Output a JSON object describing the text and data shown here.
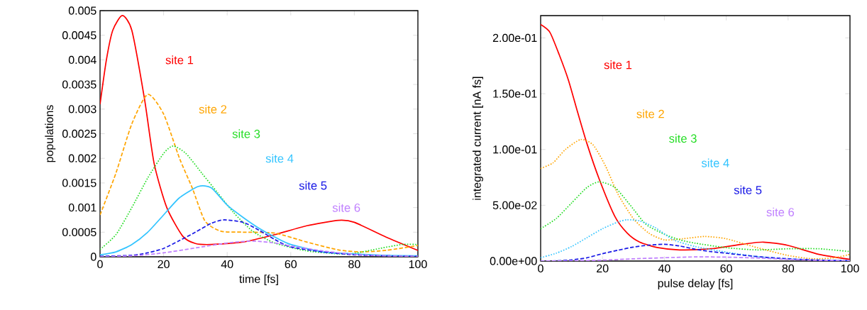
{
  "chart_data": [
    {
      "type": "line",
      "xlabel": "time [fs]",
      "ylabel": "populations",
      "xlim": [
        0,
        100
      ],
      "ylim": [
        0,
        0.005
      ],
      "xticks": [
        0,
        20,
        40,
        60,
        80,
        100
      ],
      "yticks": [
        0,
        0.0005,
        0.001,
        0.0015,
        0.002,
        0.0025,
        0.003,
        0.0035,
        0.004,
        0.0045,
        0.005
      ],
      "series": [
        {
          "name": "site 1",
          "color": "#ff0000",
          "line_style": "solid",
          "x": [
            0,
            2,
            4,
            7,
            10,
            14,
            17,
            21,
            26,
            30,
            35,
            45,
            55,
            65,
            75,
            80,
            90,
            100
          ],
          "values": [
            0.0031,
            0.004,
            0.0046,
            0.0049,
            0.0046,
            0.0032,
            0.0019,
            0.001,
            0.00042,
            0.00027,
            0.00025,
            0.0003,
            0.00045,
            0.00063,
            0.00074,
            0.0007,
            0.0004,
            0.00013
          ]
        },
        {
          "name": "site 2",
          "color": "#ffa500",
          "line_style": "dashed",
          "x": [
            0,
            5,
            10,
            15,
            20,
            25,
            29,
            33,
            38,
            45,
            55,
            65,
            75,
            82,
            90,
            100
          ],
          "values": [
            0.00085,
            0.0017,
            0.0027,
            0.0033,
            0.0029,
            0.002,
            0.0014,
            0.00073,
            0.00052,
            0.0005,
            0.00048,
            0.0003,
            0.00014,
            0.0001,
            0.00013,
            0.00023
          ]
        },
        {
          "name": "site 3",
          "color": "#22dd22",
          "line_style": "dotted",
          "x": [
            0,
            5,
            10,
            15,
            20,
            23,
            27,
            32,
            37,
            42,
            48,
            55,
            65,
            75,
            80,
            88,
            95,
            100
          ],
          "values": [
            0.00015,
            0.00045,
            0.001,
            0.0016,
            0.0021,
            0.00225,
            0.0021,
            0.0017,
            0.0013,
            0.0009,
            0.00052,
            0.00028,
            0.00012,
            6e-05,
            7e-05,
            0.00017,
            0.00025,
            0.00025
          ]
        },
        {
          "name": "site 4",
          "color": "#33c4ff",
          "line_style": "solid",
          "x": [
            0,
            5,
            10,
            15,
            20,
            25,
            31,
            35,
            40,
            45,
            50,
            55,
            60,
            70,
            80,
            90,
            100
          ],
          "values": [
            4e-05,
            0.0001,
            0.00025,
            0.0005,
            0.00085,
            0.0012,
            0.00143,
            0.0014,
            0.00105,
            0.0008,
            0.00058,
            0.0004,
            0.00025,
            0.0001,
            6e-05,
            3e-05,
            2e-05
          ]
        },
        {
          "name": "site 5",
          "color": "#1a1ae6",
          "line_style": "dashed",
          "x": [
            0,
            10,
            15,
            20,
            25,
            30,
            35,
            39,
            45,
            50,
            55,
            60,
            70,
            80,
            90,
            100
          ],
          "values": [
            1e-05,
            3e-05,
            8e-05,
            0.00017,
            0.00033,
            0.0005,
            0.00068,
            0.00075,
            0.0007,
            0.00054,
            0.00035,
            0.0002,
            0.0001,
            4e-05,
            2e-05,
            1e-05
          ]
        },
        {
          "name": "site 6",
          "color": "#c080ff",
          "line_style": "dashed",
          "x": [
            0,
            10,
            20,
            30,
            40,
            48,
            55,
            60,
            70,
            80,
            90,
            100
          ],
          "values": [
            0,
            2e-05,
            8e-05,
            0.00018,
            0.00028,
            0.00032,
            0.00028,
            0.00022,
            0.00012,
            5e-05,
            2e-05,
            1e-05
          ]
        }
      ]
    },
    {
      "type": "line",
      "xlabel": "pulse delay [fs]",
      "ylabel": "integrated current [nA fs]",
      "xlim": [
        0,
        100
      ],
      "ylim": [
        0,
        0.22
      ],
      "xticks": [
        0,
        20,
        40,
        60,
        80,
        100
      ],
      "yticks": [
        {
          "value": 0,
          "label": "0.00e+00"
        },
        {
          "value": 0.05,
          "label": "5.00e-02"
        },
        {
          "value": 0.1,
          "label": "1.00e-01"
        },
        {
          "value": 0.15,
          "label": "1.50e-01"
        },
        {
          "value": 0.2,
          "label": "2.00e-01"
        }
      ],
      "series": [
        {
          "name": "site 1",
          "color": "#ff0000",
          "line_style": "solid",
          "x": [
            0,
            3,
            6,
            9,
            12,
            15,
            19,
            24,
            28,
            32,
            38,
            45,
            55,
            65,
            72,
            80,
            90,
            100
          ],
          "values": [
            0.212,
            0.205,
            0.185,
            0.162,
            0.133,
            0.105,
            0.073,
            0.04,
            0.025,
            0.017,
            0.012,
            0.01,
            0.011,
            0.015,
            0.017,
            0.014,
            0.006,
            0.0015
          ]
        },
        {
          "name": "site 2",
          "color": "#ffa500",
          "line_style": "dotted",
          "x": [
            0,
            4,
            8,
            13,
            17,
            21,
            25,
            30,
            35,
            40,
            46,
            53,
            60,
            70,
            80,
            88,
            95,
            100
          ],
          "values": [
            0.083,
            0.088,
            0.1,
            0.109,
            0.104,
            0.085,
            0.06,
            0.038,
            0.025,
            0.019,
            0.02,
            0.022,
            0.02,
            0.012,
            0.005,
            0.002,
            0.003,
            0.006
          ]
        },
        {
          "name": "site 3",
          "color": "#22dd22",
          "line_style": "dotted",
          "x": [
            0,
            5,
            10,
            15,
            19,
            24,
            29,
            34,
            40,
            45,
            50,
            60,
            70,
            80,
            90,
            100
          ],
          "values": [
            0.029,
            0.038,
            0.052,
            0.066,
            0.071,
            0.066,
            0.05,
            0.033,
            0.024,
            0.019,
            0.016,
            0.012,
            0.01,
            0.011,
            0.011,
            0.0085
          ]
        },
        {
          "name": "site 4",
          "color": "#33c4ff",
          "line_style": "dotted",
          "x": [
            0,
            5,
            10,
            15,
            20,
            25,
            28,
            32,
            37,
            43,
            50,
            60,
            70,
            80,
            90,
            100
          ],
          "values": [
            0.003,
            0.007,
            0.013,
            0.021,
            0.029,
            0.035,
            0.037,
            0.036,
            0.03,
            0.019,
            0.013,
            0.008,
            0.004,
            0.002,
            0.001,
            0.0005
          ]
        },
        {
          "name": "site 5",
          "color": "#1a1ae6",
          "line_style": "dashed",
          "x": [
            0,
            5,
            10,
            15,
            20,
            25,
            30,
            35,
            40,
            45,
            50,
            55,
            60,
            70,
            80,
            90,
            100
          ],
          "values": [
            0,
            0.0002,
            0.001,
            0.003,
            0.0066,
            0.0097,
            0.0125,
            0.0143,
            0.015,
            0.0135,
            0.0106,
            0.0085,
            0.007,
            0.004,
            0.002,
            0.0008,
            0.0002
          ]
        },
        {
          "name": "site 6",
          "color": "#c080ff",
          "line_style": "dashed",
          "x": [
            0,
            10,
            20,
            30,
            40,
            50,
            60,
            70,
            80,
            90,
            100
          ],
          "values": [
            0,
            0.0002,
            0.0008,
            0.002,
            0.003,
            0.0037,
            0.0035,
            0.0027,
            0.0015,
            0.0006,
            0.0002
          ]
        }
      ]
    }
  ]
}
